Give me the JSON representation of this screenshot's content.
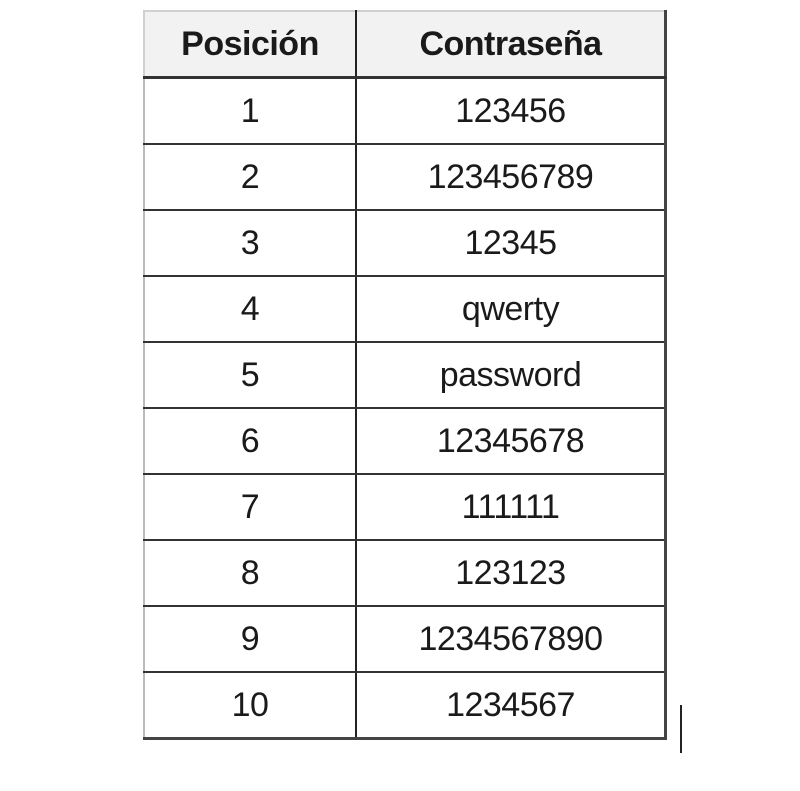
{
  "table": {
    "headers": [
      "Posición",
      "Contraseña"
    ],
    "rows": [
      [
        "1",
        "123456"
      ],
      [
        "2",
        "123456789"
      ],
      [
        "3",
        "12345"
      ],
      [
        "4",
        "qwerty"
      ],
      [
        "5",
        "password"
      ],
      [
        "6",
        "12345678"
      ],
      [
        "7",
        "111111"
      ],
      [
        "8",
        "123123"
      ],
      [
        "9",
        "1234567890"
      ],
      [
        "10",
        "1234567"
      ]
    ]
  },
  "colors": {
    "header_bg": "#f2f2f2",
    "border": "#333333"
  }
}
